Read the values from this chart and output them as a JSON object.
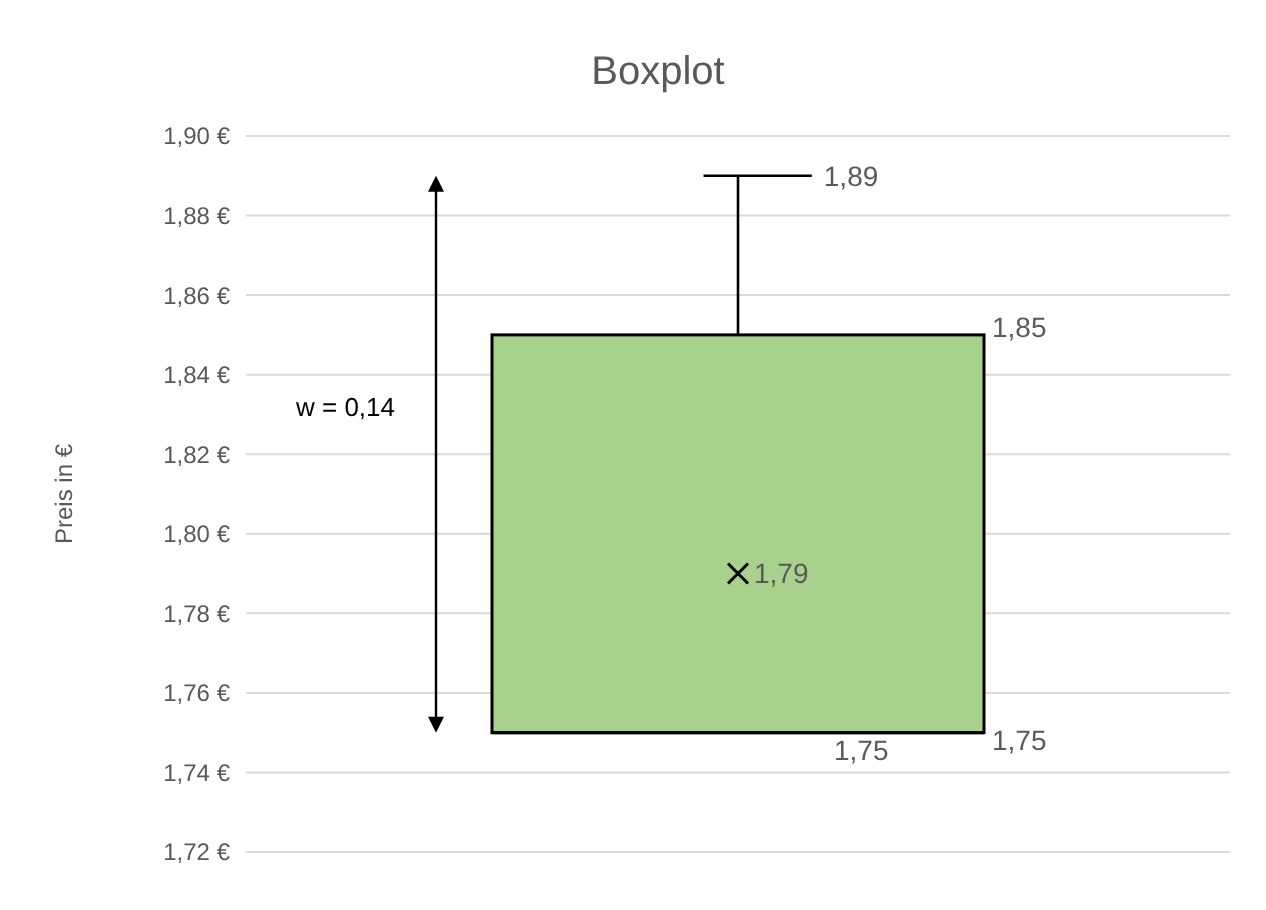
{
  "chart_data": {
    "type": "box",
    "title": "Boxplot",
    "ylabel": "Preis in €",
    "categories": [
      null
    ],
    "boxes": [
      {
        "low": 1.75,
        "q1": 1.75,
        "median": 1.75,
        "q3": 1.85,
        "high": 1.89,
        "mean": 1.79
      }
    ],
    "color": "#a9d18e",
    "ylim": [
      1.72,
      1.9
    ],
    "yticks": [
      {
        "value": 1.72,
        "label": "1,72 €"
      },
      {
        "value": 1.74,
        "label": "1,74 €"
      },
      {
        "value": 1.76,
        "label": "1,76 €"
      },
      {
        "value": 1.78,
        "label": "1,78 €"
      },
      {
        "value": 1.8,
        "label": "1,80 €"
      },
      {
        "value": 1.82,
        "label": "1,82 €"
      },
      {
        "value": 1.84,
        "label": "1,84 €"
      },
      {
        "value": 1.86,
        "label": "1,86 €"
      },
      {
        "value": 1.88,
        "label": "1,88 €"
      },
      {
        "value": 1.9,
        "label": "1,90 €"
      }
    ],
    "grid": "y",
    "marker": "cross",
    "annotations": [
      "1,89",
      "1,85",
      "1,79",
      "1,75",
      "1,75",
      "w = 0,14"
    ]
  }
}
